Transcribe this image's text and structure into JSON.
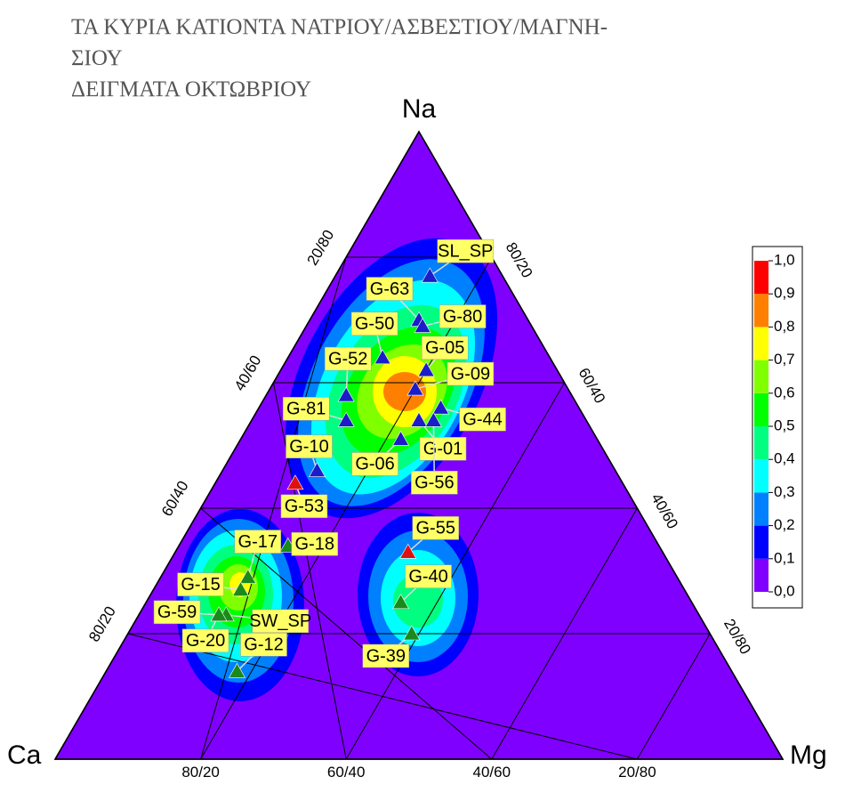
{
  "chart_data": {
    "type": "ternary",
    "title_lines": [
      "ΤΑ ΚΥΡΙΑ ΚΑΤΙΟΝΤΑ ΝΑΤΡΙΟΥ/ΑΣΒΕΣΤΙΟΥ/ΜΑΓΝΗ-",
      "ΣΙΟΥ",
      "ΔΕΙΓΜΑΤΑ ΟΚΤΩΒΡΙΟΥ"
    ],
    "axes": {
      "top": "Na",
      "left": "Ca",
      "right": "Mg"
    },
    "left_ticks": [
      {
        "value": 0.8,
        "label": "20/80"
      },
      {
        "value": 0.6,
        "label": "40/60"
      },
      {
        "value": 0.4,
        "label": "60/40"
      },
      {
        "value": 0.2,
        "label": "80/20"
      }
    ],
    "right_ticks": [
      {
        "value": 0.8,
        "label": "80/20"
      },
      {
        "value": 0.6,
        "label": "60/40"
      },
      {
        "value": 0.4,
        "label": "40/60"
      },
      {
        "value": 0.2,
        "label": "20/80"
      }
    ],
    "bottom_ticks": [
      {
        "value": 0.2,
        "label": "80/20"
      },
      {
        "value": 0.4,
        "label": "60/40"
      },
      {
        "value": 0.6,
        "label": "40/60"
      },
      {
        "value": 0.8,
        "label": "20/80"
      }
    ],
    "points": [
      {
        "label": "SL_SP",
        "na": 0.77,
        "ca": 0.1,
        "mg": 0.13,
        "color": "#1c1cc8"
      },
      {
        "label": "G-63",
        "na": 0.7,
        "ca": 0.15,
        "mg": 0.15,
        "color": "#1c1cc8"
      },
      {
        "label": "G-80",
        "na": 0.69,
        "ca": 0.15,
        "mg": 0.16,
        "color": "#1c1cc8"
      },
      {
        "label": "G-50",
        "na": 0.64,
        "ca": 0.23,
        "mg": 0.13,
        "color": "#1c1cc8"
      },
      {
        "label": "G-52",
        "na": 0.58,
        "ca": 0.31,
        "mg": 0.11,
        "color": "#1c1cc8"
      },
      {
        "label": "G-05",
        "na": 0.62,
        "ca": 0.18,
        "mg": 0.2,
        "color": "#1c1cc8"
      },
      {
        "label": "G-09",
        "na": 0.59,
        "ca": 0.21,
        "mg": 0.2,
        "color": "#1c1cc8"
      },
      {
        "label": "G-81",
        "na": 0.54,
        "ca": 0.33,
        "mg": 0.13,
        "color": "#1c1cc8"
      },
      {
        "label": "G-44",
        "na": 0.56,
        "ca": 0.19,
        "mg": 0.25,
        "color": "#1c1cc8"
      },
      {
        "label": "G-01",
        "na": 0.54,
        "ca": 0.23,
        "mg": 0.23,
        "color": "#1c1cc8"
      },
      {
        "label": "G-06",
        "na": 0.51,
        "ca": 0.27,
        "mg": 0.22,
        "color": "#1c1cc8"
      },
      {
        "label": "G-56",
        "na": 0.54,
        "ca": 0.21,
        "mg": 0.25,
        "color": "#1c1cc8"
      },
      {
        "label": "G-10",
        "na": 0.46,
        "ca": 0.41,
        "mg": 0.13,
        "color": "#1c1cc8"
      },
      {
        "label": "G-53",
        "na": 0.44,
        "ca": 0.45,
        "mg": 0.11,
        "color": "#e01010"
      },
      {
        "label": "G-55",
        "na": 0.33,
        "ca": 0.35,
        "mg": 0.32,
        "color": "#e01010"
      },
      {
        "label": "G-40",
        "na": 0.25,
        "ca": 0.4,
        "mg": 0.35,
        "color": "#1a8a1a"
      },
      {
        "label": "G-39",
        "na": 0.2,
        "ca": 0.41,
        "mg": 0.39,
        "color": "#1a8a1a"
      },
      {
        "label": "G-18",
        "na": 0.34,
        "ca": 0.51,
        "mg": 0.15,
        "color": "#1a8a1a"
      },
      {
        "label": "G-17",
        "na": 0.29,
        "ca": 0.59,
        "mg": 0.12,
        "color": "#1a8a1a"
      },
      {
        "label": "G-15",
        "na": 0.27,
        "ca": 0.61,
        "mg": 0.12,
        "color": "#1a8a1a"
      },
      {
        "label": "G-59",
        "na": 0.23,
        "ca": 0.66,
        "mg": 0.11,
        "color": "#1a8a1a"
      },
      {
        "label": "SW_SP",
        "na": 0.23,
        "ca": 0.65,
        "mg": 0.12,
        "color": "#1a8a1a"
      },
      {
        "label": "G-20",
        "na": 0.23,
        "ca": 0.66,
        "mg": 0.11,
        "color": "#1a8a1a"
      },
      {
        "label": "G-12",
        "na": 0.14,
        "ca": 0.68,
        "mg": 0.18,
        "color": "#1a8a1a"
      }
    ],
    "colorbar": {
      "colors": [
        "#8000ff",
        "#0000ff",
        "#0080ff",
        "#00ffff",
        "#00ff80",
        "#00ff00",
        "#80ff00",
        "#ffff00",
        "#ff8000",
        "#ff0000"
      ],
      "lim": [
        0,
        1
      ],
      "ticks": [
        {
          "value": 1,
          "label": "1,0"
        },
        {
          "value": 0.9,
          "label": "0,9"
        },
        {
          "value": 0.8,
          "label": "0,8"
        },
        {
          "value": 0.7,
          "label": "0,7"
        },
        {
          "value": 0.6,
          "label": "0,6"
        },
        {
          "value": 0.5,
          "label": "0,5"
        },
        {
          "value": 0.4,
          "label": "0,4"
        },
        {
          "value": 0.3,
          "label": "0,3"
        },
        {
          "value": 0.2,
          "label": "0,2"
        },
        {
          "value": 0.1,
          "label": "0,1"
        },
        {
          "value": 0,
          "label": "0,0"
        }
      ]
    }
  }
}
